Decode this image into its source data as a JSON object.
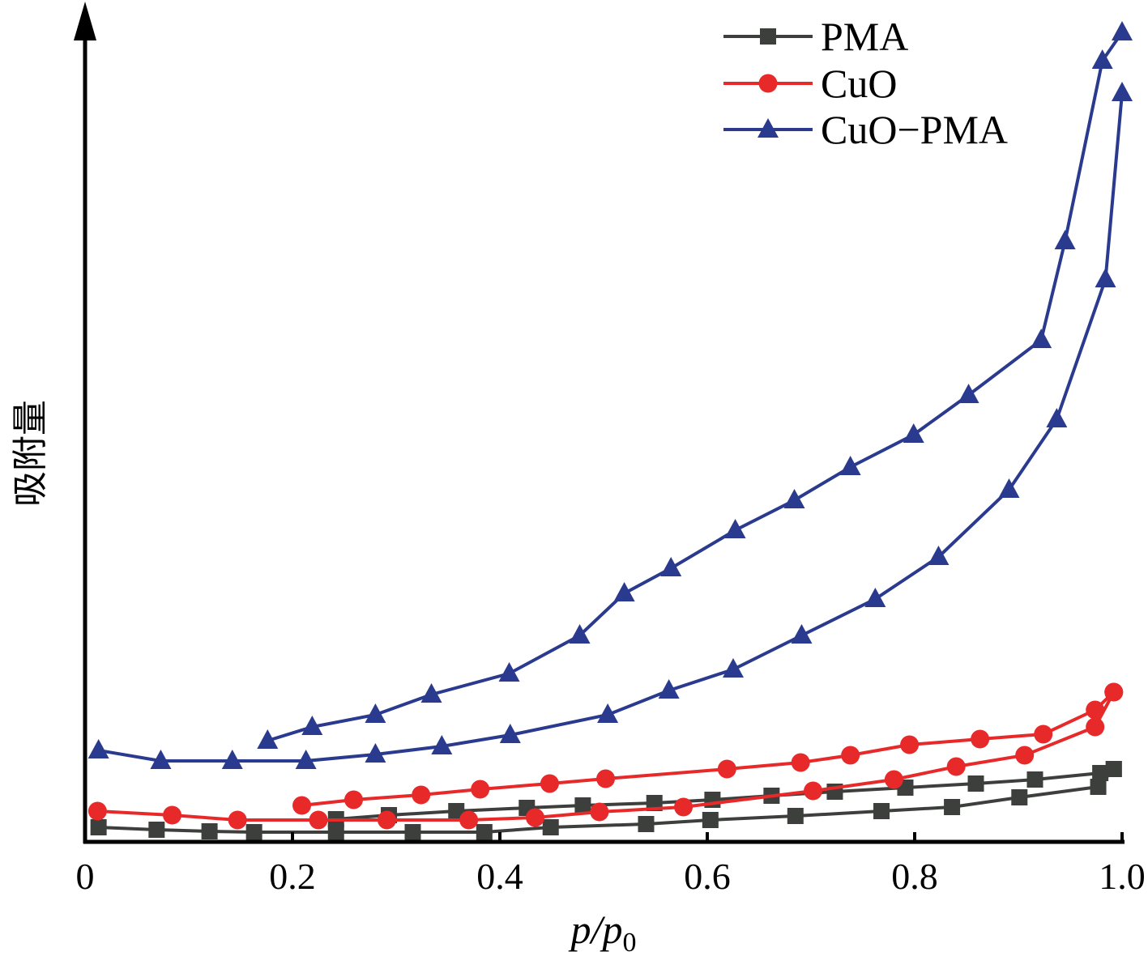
{
  "chart_data": {
    "type": "line",
    "title": "",
    "xlabel": "p/p0",
    "xlabel_main": "p/p",
    "xlabel_sub": "0",
    "ylabel": "吸附量",
    "xlim": [
      0,
      1.0
    ],
    "ylim": [
      0,
      103
    ],
    "y_units": "arbitrary (no tick labels)",
    "xticks": [
      0,
      0.2,
      0.4,
      0.6,
      0.8,
      1.0
    ],
    "xtick_labels": [
      "0",
      "0.2",
      "0.4",
      "0.6",
      "0.8",
      "1.0"
    ],
    "grid": false,
    "legend_position": "top-right",
    "series": [
      {
        "name": "PMA",
        "color": "#3d3f3c",
        "marker": "square",
        "branches": [
          {
            "x": [
              0.013,
              0.069,
              0.12,
              0.163,
              0.242,
              0.316,
              0.385,
              0.449,
              0.541,
              0.603,
              0.685,
              0.768,
              0.836,
              0.901,
              0.977,
              0.992
            ],
            "y": [
              1.8,
              1.5,
              1.3,
              1.2,
              1.2,
              1.2,
              1.2,
              1.8,
              2.2,
              2.7,
              3.2,
              3.8,
              4.3,
              5.5,
              6.8,
              9.0
            ]
          },
          {
            "x": [
              0.242,
              0.293,
              0.358,
              0.426,
              0.48,
              0.549,
              0.605,
              0.662,
              0.723,
              0.791,
              0.859,
              0.916,
              0.979,
              0.992
            ],
            "y": [
              2.8,
              3.3,
              3.8,
              4.2,
              4.5,
              4.8,
              5.2,
              5.7,
              6.2,
              6.7,
              7.2,
              7.7,
              8.5,
              9.0
            ]
          }
        ]
      },
      {
        "name": "CuO",
        "color": "#e8292a",
        "marker": "circle",
        "branches": [
          {
            "x": [
              0.012,
              0.084,
              0.147,
              0.225,
              0.291,
              0.37,
              0.434,
              0.496,
              0.577,
              0.702,
              0.78,
              0.84,
              0.906,
              0.974,
              0.992
            ],
            "y": [
              3.8,
              3.3,
              2.7,
              2.7,
              2.7,
              2.7,
              3.0,
              3.7,
              4.3,
              6.3,
              7.7,
              9.3,
              10.7,
              14.2,
              18.5
            ]
          },
          {
            "x": [
              0.209,
              0.259,
              0.324,
              0.381,
              0.448,
              0.502,
              0.619,
              0.69,
              0.738,
              0.795,
              0.863,
              0.924,
              0.974,
              0.992
            ],
            "y": [
              4.5,
              5.2,
              5.8,
              6.5,
              7.2,
              7.8,
              9.0,
              9.8,
              10.7,
              12.0,
              12.7,
              13.3,
              16.3,
              18.5
            ]
          }
        ]
      },
      {
        "name": "CuO−PMA",
        "color": "#2a3b8f",
        "marker": "triangle",
        "branches": [
          {
            "x": [
              0.013,
              0.073,
              0.142,
              0.213,
              0.28,
              0.344,
              0.41,
              0.504,
              0.563,
              0.625,
              0.691,
              0.762,
              0.823,
              0.891,
              0.937,
              0.984,
              1.0
            ],
            "y": [
              11.3,
              10.0,
              10.0,
              10.0,
              10.8,
              11.8,
              13.2,
              15.7,
              18.7,
              21.3,
              25.5,
              30.0,
              35.2,
              43.5,
              52.2,
              69.5,
              92.5
            ]
          },
          {
            "x": [
              0.176,
              0.219,
              0.28,
              0.334,
              0.409,
              0.477,
              0.52,
              0.565,
              0.627,
              0.684,
              0.738,
              0.799,
              0.852,
              0.922,
              0.945,
              0.981,
              1.0
            ],
            "y": [
              12.5,
              14.2,
              15.7,
              18.2,
              20.8,
              25.5,
              30.7,
              33.8,
              38.5,
              42.2,
              46.3,
              50.3,
              55.2,
              62.0,
              74.2,
              96.5,
              100.0
            ]
          }
        ]
      }
    ]
  }
}
